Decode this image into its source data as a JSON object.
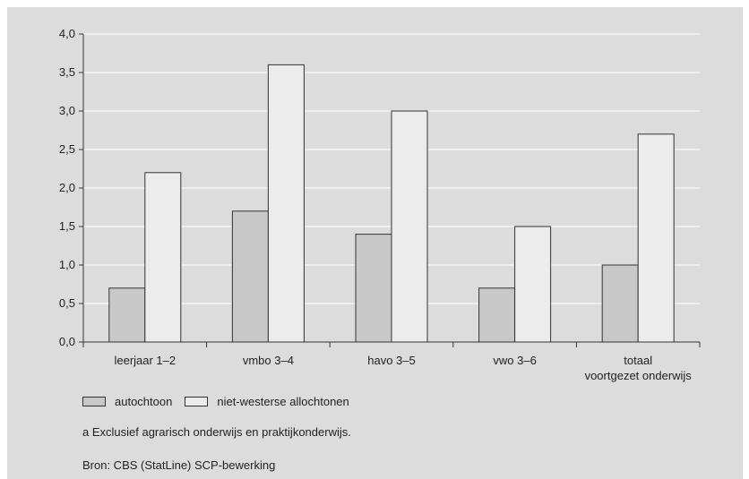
{
  "chart_data": {
    "type": "bar",
    "categories": [
      [
        "leerjaar 1–2"
      ],
      [
        "vmbo 3–4"
      ],
      [
        "havo 3–5"
      ],
      [
        "vwo 3–6"
      ],
      [
        "totaal",
        "voortgezet onderwijs"
      ]
    ],
    "series": [
      {
        "name": "autochtoon",
        "values": [
          0.7,
          1.7,
          1.4,
          0.7,
          1.0
        ],
        "color": "#c8c8c8"
      },
      {
        "name": "niet-westerse allochtonen",
        "values": [
          2.2,
          3.6,
          3.0,
          1.5,
          2.7
        ],
        "color": "#ececec"
      }
    ],
    "ylim": [
      0,
      4.0
    ],
    "yticks": [
      "0,0",
      "0,5",
      "1,0",
      "1,5",
      "2,0",
      "2,5",
      "3,0",
      "3,5",
      "4,0"
    ],
    "grid": true,
    "legend_position": "bottom-left"
  },
  "colors": {
    "panel_background": "#dcdcdc",
    "plot_background": "#dcdcdc",
    "gridline": "#ffffff",
    "bar_outline": "#333333"
  },
  "legend": {
    "items": [
      {
        "label": "autochtoon",
        "color": "#c8c8c8"
      },
      {
        "label": "niet-westerse allochtonen",
        "color": "#ececec"
      }
    ]
  },
  "footnote": "a   Exclusief agrarisch onderwijs en praktijkonderwijs.",
  "source": "Bron: CBS (StatLine) SCP-bewerking"
}
